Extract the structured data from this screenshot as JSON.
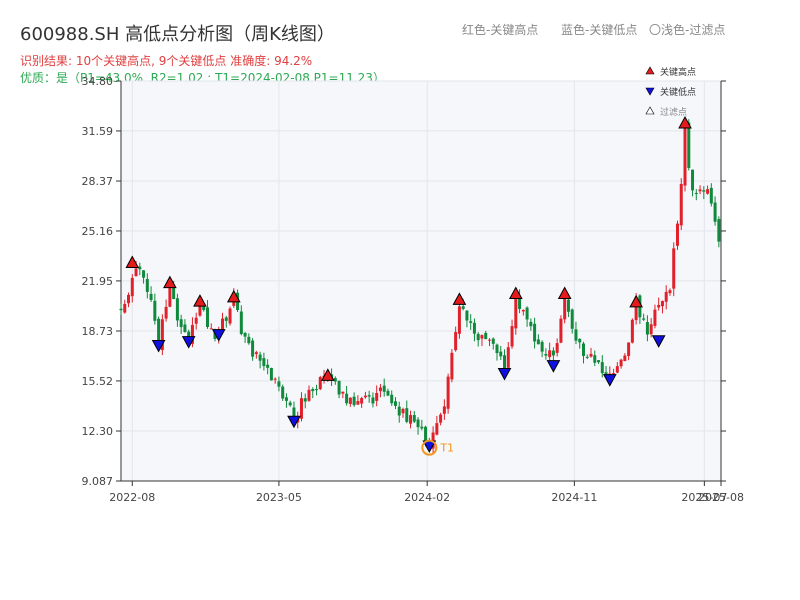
{
  "title": "600988.SH 高低点分析图（周K线图）",
  "header_legend": {
    "red": "红色-关键高点",
    "blue": "蓝色-关键低点",
    "light": "〇浅色-过滤点"
  },
  "result_line": "识别结果: 10个关键高点, 9个关键低点  准确度: 94.2%",
  "quality_line": "优质：是（P1=43.0%, R2=1.02 ; T1=2024-02-08 P1=11.23）",
  "colors": {
    "up": "#e0202a",
    "down": "#0f8a3c",
    "high_marker": "#e41a1c",
    "low_marker": "#1010e0",
    "t1_ring": "#f0961e",
    "plot_bg": "#f5f7fa"
  },
  "chart_data": {
    "type": "candlestick",
    "title": "600988.SH 高低点分析图（周K线图）",
    "y_ticks": [
      "9.087",
      "12.30",
      "15.52",
      "18.73",
      "21.95",
      "25.16",
      "28.37",
      "31.59",
      "34.80"
    ],
    "ylim": [
      9.087,
      34.8
    ],
    "x_ticks": [
      "2022-08",
      "2023-05",
      "2024-02",
      "2024-11",
      "2025-07",
      "2025-08"
    ],
    "x_tick_dates": [
      "2022-08-01",
      "2023-05-01",
      "2024-02-01",
      "2024-11-01",
      "2025-07-01",
      "2025-08-01"
    ],
    "xlim": [
      "2022-07-11",
      "2025-08-01"
    ],
    "grid": true,
    "legend_position": "top-right",
    "legend": [
      {
        "label": "关键高点",
        "symbol": "high"
      },
      {
        "label": "关键低点",
        "symbol": "low"
      },
      {
        "label": "过滤点",
        "symbol": "filtered"
      }
    ],
    "price_path": [
      [
        "2022-07-11",
        20.2
      ],
      [
        "2022-08-01",
        22.1
      ],
      [
        "2022-08-15",
        22.9
      ],
      [
        "2022-09-05",
        20.5
      ],
      [
        "2022-09-19",
        17.9
      ],
      [
        "2022-10-10",
        21.5
      ],
      [
        "2022-10-31",
        19.0
      ],
      [
        "2022-11-14",
        18.0
      ],
      [
        "2022-12-05",
        20.5
      ],
      [
        "2022-12-26",
        18.6
      ],
      [
        "2023-01-09",
        18.7
      ],
      [
        "2023-02-06",
        20.8
      ],
      [
        "2023-02-27",
        18.0
      ],
      [
        "2023-04-03",
        16.2
      ],
      [
        "2023-05-01",
        15.2
      ],
      [
        "2023-05-29",
        13.2
      ],
      [
        "2023-06-26",
        15.0
      ],
      [
        "2023-07-31",
        15.8
      ],
      [
        "2023-08-28",
        14.6
      ],
      [
        "2023-10-02",
        14.1
      ],
      [
        "2023-11-06",
        14.8
      ],
      [
        "2023-12-18",
        13.5
      ],
      [
        "2024-01-22",
        12.6
      ],
      [
        "2024-02-05",
        11.6
      ],
      [
        "2024-03-04",
        14.0
      ],
      [
        "2024-04-01",
        20.6
      ],
      [
        "2024-05-06",
        18.3
      ],
      [
        "2024-06-10",
        17.6
      ],
      [
        "2024-06-24",
        16.4
      ],
      [
        "2024-07-15",
        20.9
      ],
      [
        "2024-08-19",
        18.5
      ],
      [
        "2024-09-09",
        17.4
      ],
      [
        "2024-09-23",
        16.9
      ],
      [
        "2024-10-14",
        20.9
      ],
      [
        "2024-11-04",
        17.8
      ],
      [
        "2024-12-02",
        17.2
      ],
      [
        "2025-01-06",
        15.8
      ],
      [
        "2025-02-03",
        17.4
      ],
      [
        "2025-02-24",
        20.5
      ],
      [
        "2025-03-17",
        18.4
      ],
      [
        "2025-04-07",
        20.5
      ],
      [
        "2025-04-28",
        21.8
      ],
      [
        "2025-05-12",
        25.4
      ],
      [
        "2025-05-26",
        31.8
      ],
      [
        "2025-06-09",
        27.5
      ],
      [
        "2025-07-07",
        27.8
      ],
      [
        "2025-07-28",
        24.2
      ],
      [
        "2025-08-01",
        25.9
      ]
    ],
    "key_highs": [
      {
        "date": "2022-08-01",
        "price": 23.13
      },
      {
        "date": "2022-10-10",
        "price": 21.84
      },
      {
        "date": "2022-12-05",
        "price": 20.65
      },
      {
        "date": "2023-02-06",
        "price": 20.92
      },
      {
        "date": "2023-07-31",
        "price": 15.88
      },
      {
        "date": "2024-04-01",
        "price": 20.76
      },
      {
        "date": "2024-07-15",
        "price": 21.14
      },
      {
        "date": "2024-10-14",
        "price": 21.14
      },
      {
        "date": "2025-02-24",
        "price": 20.6
      },
      {
        "date": "2025-05-26",
        "price": 32.1
      }
    ],
    "key_lows": [
      {
        "date": "2022-09-19",
        "price": 17.8
      },
      {
        "date": "2022-11-14",
        "price": 18.05
      },
      {
        "date": "2023-01-09",
        "price": 18.5
      },
      {
        "date": "2023-05-29",
        "price": 12.93
      },
      {
        "date": "2024-02-05",
        "price": 11.34
      },
      {
        "date": "2024-06-24",
        "price": 16.0
      },
      {
        "date": "2024-09-23",
        "price": 16.5
      },
      {
        "date": "2025-01-06",
        "price": 15.6
      },
      {
        "date": "2025-04-07",
        "price": 18.1
      }
    ],
    "annotation": {
      "label": "T1",
      "date": "2024-02-05",
      "price": 11.23
    }
  }
}
